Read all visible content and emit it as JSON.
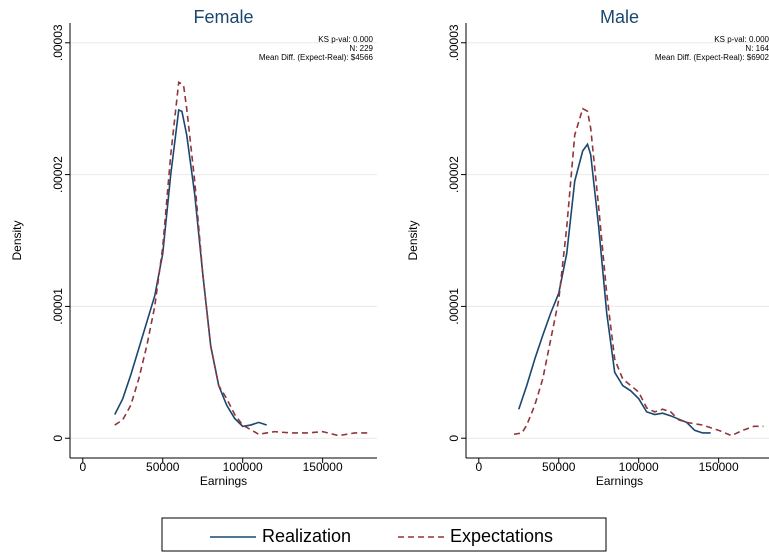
{
  "chart_data": [
    {
      "type": "line",
      "title": "Female",
      "xlabel": "Earnings",
      "ylabel": "Density",
      "annotations": [
        "KS p-val: 0.000",
        "N: 229",
        "Mean Diff. (Expect-Real): $4566"
      ],
      "xlim": [
        -8000,
        184000
      ],
      "xticks": [
        0,
        50000,
        100000,
        150000
      ],
      "ylim": [
        -1.5e-06,
        3.15e-05
      ],
      "yticks": [
        0,
        {
          "value": 1e-05,
          "label": ".00001"
        },
        {
          "value": 2e-05,
          "label": ".00002"
        },
        {
          "value": 3e-05,
          "label": ".00003"
        }
      ],
      "grid": true,
      "series": [
        {
          "name": "Realization",
          "color": "#1a476f",
          "style": "solid",
          "x": [
            20000,
            25000,
            30000,
            35000,
            40000,
            45000,
            50000,
            55000,
            60000,
            62000,
            65000,
            70000,
            75000,
            80000,
            85000,
            90000,
            95000,
            100000,
            105000,
            110000,
            115000
          ],
          "values": [
            1.8e-06,
            3e-06,
            4.8e-06,
            6.8e-06,
            8.8e-06,
            1.08e-05,
            1.4e-05,
            2e-05,
            2.49e-05,
            2.48e-05,
            2.3e-05,
            1.85e-05,
            1.25e-05,
            7e-06,
            4e-06,
            2.5e-06,
            1.5e-06,
            9e-07,
            1e-06,
            1.2e-06,
            1e-06
          ]
        },
        {
          "name": "Expectations",
          "color": "#90353b",
          "style": "dashed",
          "x": [
            20000,
            25000,
            30000,
            35000,
            40000,
            45000,
            50000,
            55000,
            60000,
            63000,
            65000,
            70000,
            75000,
            80000,
            85000,
            90000,
            95000,
            100000,
            110000,
            120000,
            130000,
            140000,
            150000,
            160000,
            170000,
            178000
          ],
          "values": [
            1e-06,
            1.4e-06,
            2.5e-06,
            4.5e-06,
            7e-06,
            1e-05,
            1.45e-05,
            2.15e-05,
            2.7e-05,
            2.68e-05,
            2.5e-05,
            1.95e-05,
            1.25e-05,
            7e-06,
            4e-06,
            3e-06,
            1.8e-06,
            1e-06,
            3e-07,
            5e-07,
            4e-07,
            4e-07,
            5e-07,
            2e-07,
            4e-07,
            4e-07
          ]
        }
      ]
    },
    {
      "type": "line",
      "title": "Male",
      "xlabel": "Earnings",
      "ylabel": "Density",
      "annotations": [
        "KS p-val: 0.000",
        "N: 164",
        "Mean Diff. (Expect-Real): $6902"
      ],
      "xlim": [
        -8000,
        184000
      ],
      "xticks": [
        0,
        50000,
        100000,
        150000
      ],
      "ylim": [
        -1.5e-06,
        3.15e-05
      ],
      "yticks": [
        0,
        {
          "value": 1e-05,
          "label": ".00001"
        },
        {
          "value": 2e-05,
          "label": ".00002"
        },
        {
          "value": 3e-05,
          "label": ".00003"
        }
      ],
      "grid": true,
      "series": [
        {
          "color": "#1a476f",
          "style": "solid",
          "x": [
            25000,
            30000,
            35000,
            40000,
            45000,
            50000,
            55000,
            60000,
            65000,
            68000,
            70000,
            75000,
            80000,
            85000,
            90000,
            95000,
            100000,
            105000,
            110000,
            115000,
            120000,
            130000,
            135000,
            140000,
            145000
          ],
          "values": [
            2.2e-06,
            4e-06,
            6e-06,
            7.8e-06,
            9.5e-06,
            1.1e-05,
            1.4e-05,
            1.95e-05,
            2.18e-05,
            2.23e-05,
            2.15e-05,
            1.6e-05,
            9.5e-06,
            5e-06,
            4e-06,
            3.6e-06,
            3e-06,
            2e-06,
            1.8e-06,
            1.9e-06,
            1.7e-06,
            1.2e-06,
            6e-07,
            4e-07,
            4e-07
          ]
        },
        {
          "color": "#90353b",
          "style": "dashed",
          "x": [
            22000,
            27000,
            30000,
            35000,
            40000,
            45000,
            50000,
            55000,
            60000,
            65000,
            68000,
            70000,
            75000,
            80000,
            85000,
            90000,
            95000,
            100000,
            105000,
            110000,
            115000,
            120000,
            125000,
            130000,
            140000,
            150000,
            158000,
            165000,
            172000,
            178000
          ],
          "values": [
            3e-07,
            4e-07,
            1e-06,
            2.5e-06,
            4.5e-06,
            7.5e-06,
            1.05e-05,
            1.6e-05,
            2.3e-05,
            2.5e-05,
            2.48e-05,
            2.35e-05,
            1.75e-05,
            1.1e-05,
            6e-06,
            4.5e-06,
            4e-06,
            3.5e-06,
            2.3e-06,
            2e-06,
            2.2e-06,
            2e-06,
            1.4e-06,
            1.2e-06,
            1e-06,
            6e-07,
            2e-07,
            6e-07,
            9e-07,
            9e-07
          ]
        }
      ]
    }
  ]
}
